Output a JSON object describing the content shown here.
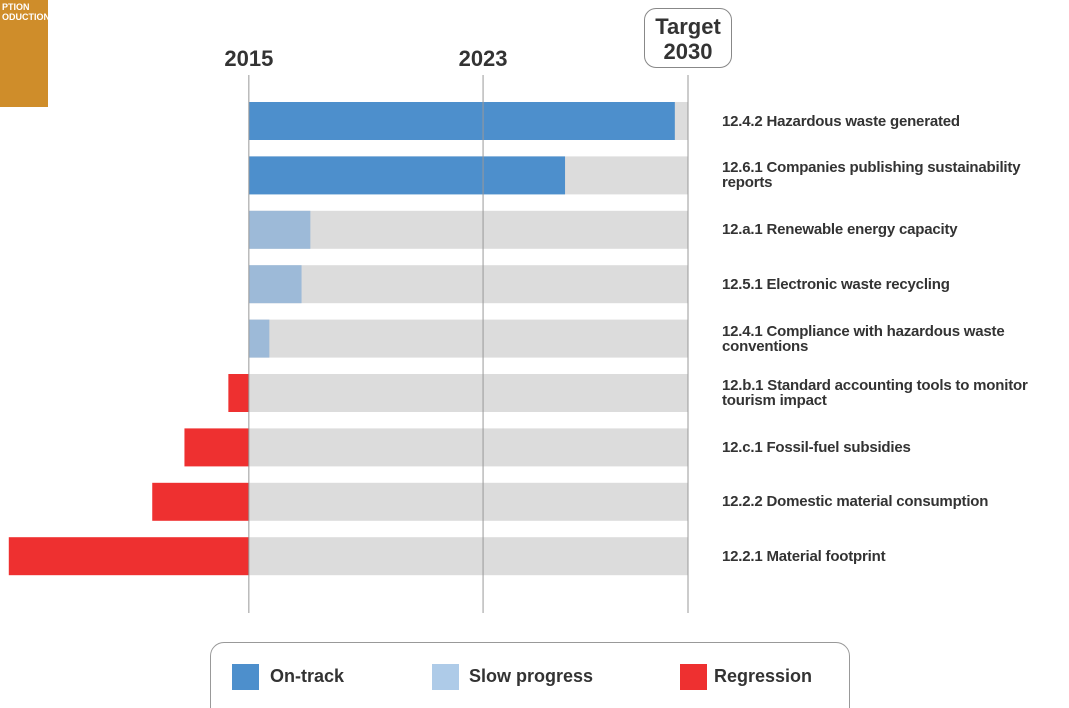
{
  "chart_data": {
    "type": "bar",
    "orientation": "horizontal",
    "logo_text": [
      "PTION",
      "ODUCTION"
    ],
    "logo_color": "#cf8d2a",
    "categories": [
      "12.4.2 Hazardous waste generated",
      "12.6.1 Companies publishing sustainability reports",
      "12.a.1 Renewable energy capacity",
      "12.5.1 Electronic waste recycling",
      "12.4.1 Compliance with hazardous waste conventions",
      "12.b.1 Standard accounting tools to monitor tourism impact",
      "12.c.1 Fossil-fuel subsidies",
      "12.2.2 Domestic material consumption",
      "12.2.1 Material footprint"
    ],
    "values": [
      2029.55,
      2025.8,
      2017.1,
      2016.8,
      2015.7,
      2014.3,
      2012.8,
      2011.7,
      2006.8
    ],
    "colors": [
      "#4d8fcc",
      "#4d8fcc",
      "#9dbad8",
      "#9dbad8",
      "#9dbad8",
      "#ee3030",
      "#ee3030",
      "#ee3030",
      "#ee3030"
    ],
    "baseline": 2015,
    "target": 2030,
    "track_color": "#dcdcdc",
    "xlim": [
      2006.5,
      2030
    ],
    "xticks": [
      2015,
      2023,
      {
        "value": 2030,
        "label": "Target 2030"
      }
    ],
    "grid": true,
    "legend": [
      {
        "name": "On-track",
        "color": "#4d8fcc"
      },
      {
        "name": "Slow progress",
        "color": "#aecbe8"
      },
      {
        "name": "Regression",
        "color": "#ee3030"
      }
    ],
    "legend_position": "bottom"
  }
}
